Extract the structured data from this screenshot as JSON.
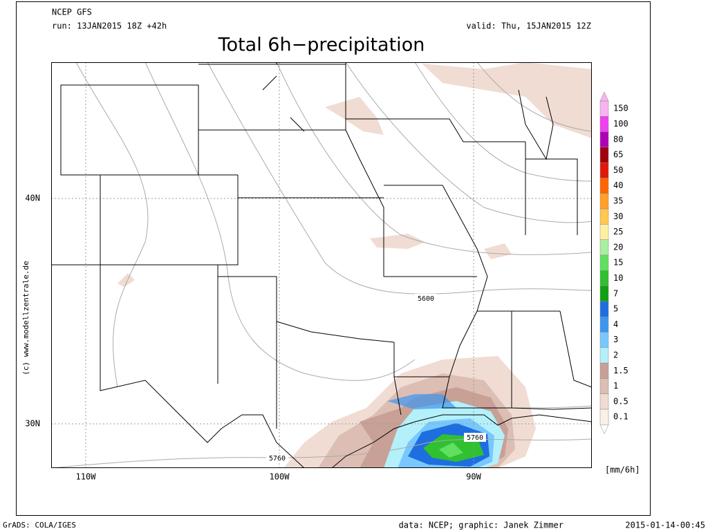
{
  "header": {
    "model": "NCEP GFS",
    "run": "run: 13JAN2015 18Z +42h",
    "valid": "valid: Thu, 15JAN2015 12Z",
    "title": "Total 6h−precipitation"
  },
  "map": {
    "lat_labels": [
      "40N",
      "30N"
    ],
    "lon_labels": [
      "110W",
      "100W",
      "90W"
    ],
    "contour_labels": [
      "5600",
      "5760",
      "5760"
    ],
    "credit": "(c) www.modellzentrale.de"
  },
  "legend": {
    "unit": "[mm/6h]",
    "levels": [
      {
        "label": "150",
        "color": "#f8b4f0"
      },
      {
        "label": "100",
        "color": "#f040f0"
      },
      {
        "label": "80",
        "color": "#b000b8"
      },
      {
        "label": "65",
        "color": "#a00010"
      },
      {
        "label": "50",
        "color": "#e01808"
      },
      {
        "label": "40",
        "color": "#ff6400"
      },
      {
        "label": "35",
        "color": "#ffa028"
      },
      {
        "label": "30",
        "color": "#ffc850"
      },
      {
        "label": "25",
        "color": "#fff0a0"
      },
      {
        "label": "20",
        "color": "#a8f0a0"
      },
      {
        "label": "15",
        "color": "#60e060"
      },
      {
        "label": "10",
        "color": "#30c030"
      },
      {
        "label": "7",
        "color": "#10a010"
      },
      {
        "label": "5",
        "color": "#1e6ee0"
      },
      {
        "label": "4",
        "color": "#3c96f0"
      },
      {
        "label": "3",
        "color": "#78c8ff"
      },
      {
        "label": "2",
        "color": "#b4f0fa"
      },
      {
        "label": "1.5",
        "color": "#c8a096"
      },
      {
        "label": "1",
        "color": "#dcbeb4"
      },
      {
        "label": "0.5",
        "color": "#f0dcd2"
      },
      {
        "label": "0.1",
        "color": "#faf0e6"
      }
    ]
  },
  "footer": {
    "left": "GrADS: COLA/IGES",
    "center": "data: NCEP; graphic: Janek Zimmer",
    "right": "2015-01-14-00:45"
  }
}
